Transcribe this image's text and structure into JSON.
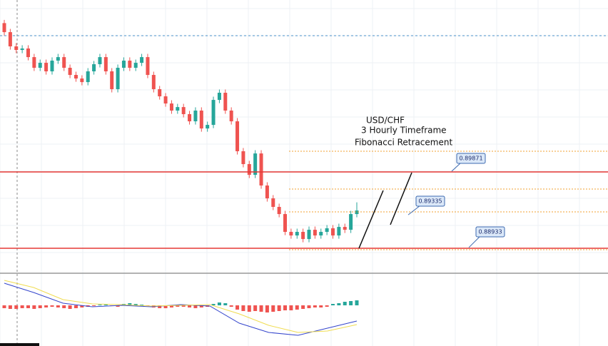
{
  "chart_data": {
    "type": "candlestick",
    "annotations": [
      "USD/CHF",
      "3 Hourly Timeframe",
      "Fibonacci Retracement"
    ],
    "ylim": [
      0.88652,
      0.91984
    ],
    "up_color": "#26a69a",
    "down_color": "#ef5350",
    "open": [
      0.917,
      0.91589,
      0.91414,
      0.9137,
      0.91388,
      0.91282,
      0.91151,
      0.91212,
      0.91107,
      0.91239,
      0.91282,
      0.91151,
      0.91063,
      0.91019,
      0.90975,
      0.91107,
      0.91195,
      0.91282,
      0.91107,
      0.90888,
      0.91151,
      0.91239,
      0.91151,
      0.91212,
      0.91282,
      0.91063,
      0.90888,
      0.908,
      0.90712,
      0.90625,
      0.90668,
      0.90581,
      0.90493,
      0.90625,
      0.90405,
      0.90449,
      0.90756,
      0.90844,
      0.90625,
      0.90493,
      0.90125,
      0.89967,
      0.89835,
      0.90098,
      0.89704,
      0.89546,
      0.89441,
      0.89353,
      0.89134,
      0.8909,
      0.89134,
      0.89046,
      0.8916,
      0.8909,
      0.89134,
      0.89178,
      0.8909,
      0.89195,
      0.8916,
      0.89353
    ],
    "high": [
      0.9174,
      0.91629,
      0.91454,
      0.91428,
      0.91428,
      0.91322,
      0.91252,
      0.91252,
      0.91279,
      0.91322,
      0.91322,
      0.91191,
      0.91103,
      0.91059,
      0.91147,
      0.91235,
      0.91322,
      0.91322,
      0.91147,
      0.91191,
      0.91279,
      0.91279,
      0.91252,
      0.91322,
      0.91322,
      0.91103,
      0.90928,
      0.9084,
      0.90752,
      0.90708,
      0.90708,
      0.90621,
      0.90665,
      0.90665,
      0.90489,
      0.90796,
      0.90884,
      0.90884,
      0.90665,
      0.90533,
      0.90165,
      0.90007,
      0.90138,
      0.90138,
      0.89744,
      0.89586,
      0.89481,
      0.89393,
      0.89174,
      0.89174,
      0.89174,
      0.892,
      0.892,
      0.89174,
      0.89218,
      0.89218,
      0.89235,
      0.89235,
      0.89393,
      0.89497
    ],
    "low": [
      0.91549,
      0.91374,
      0.9133,
      0.9133,
      0.91242,
      0.91111,
      0.91111,
      0.91067,
      0.91067,
      0.91199,
      0.91111,
      0.91023,
      0.90979,
      0.90935,
      0.90935,
      0.91067,
      0.91155,
      0.91067,
      0.90848,
      0.90848,
      0.91111,
      0.91111,
      0.91111,
      0.91172,
      0.91023,
      0.90848,
      0.9076,
      0.90672,
      0.90585,
      0.90585,
      0.90541,
      0.90453,
      0.90453,
      0.90365,
      0.90365,
      0.90409,
      0.90716,
      0.90585,
      0.90453,
      0.90085,
      0.89927,
      0.89795,
      0.89795,
      0.89664,
      0.89506,
      0.89401,
      0.89313,
      0.89094,
      0.8905,
      0.8905,
      0.89006,
      0.89006,
      0.8905,
      0.8905,
      0.89094,
      0.8905,
      0.8905,
      0.8912,
      0.8912,
      0.89313
    ],
    "close": [
      0.91589,
      0.91414,
      0.9137,
      0.91388,
      0.91282,
      0.91151,
      0.91212,
      0.91107,
      0.91239,
      0.91282,
      0.91151,
      0.91063,
      0.91019,
      0.90975,
      0.91107,
      0.91195,
      0.91282,
      0.91107,
      0.90888,
      0.91151,
      0.91239,
      0.91151,
      0.91212,
      0.91282,
      0.91063,
      0.90888,
      0.908,
      0.90712,
      0.90625,
      0.90668,
      0.90581,
      0.90493,
      0.90625,
      0.90405,
      0.90449,
      0.90756,
      0.90844,
      0.90625,
      0.90493,
      0.90125,
      0.89967,
      0.89835,
      0.90098,
      0.89704,
      0.89546,
      0.89441,
      0.89353,
      0.89134,
      0.8909,
      0.89134,
      0.89046,
      0.8916,
      0.8909,
      0.89134,
      0.89178,
      0.8909,
      0.89195,
      0.8916,
      0.89353,
      0.89397
    ],
    "levels": [
      {
        "value": 0.89871,
        "line_style": "solid",
        "color": "#e53935"
      },
      {
        "value": 0.89335
      },
      {
        "value": 0.88933,
        "line_style": "solid",
        "color": "#e53935"
      }
    ],
    "fib_levels": {
      "values": [
        0.90125,
        0.8966,
        0.8938,
        0.88915
      ],
      "color": "#f0a030"
    },
    "oscillator": {
      "ylim": [
        -52,
        43
      ],
      "histogram": [
        -4,
        -5,
        -5,
        -4,
        -4,
        -5,
        -4,
        -3,
        -2,
        -3,
        -4,
        -5,
        -4,
        -3,
        -2,
        -1,
        1,
        1,
        -1,
        -2,
        2,
        3,
        2,
        1,
        -1,
        -3,
        -4,
        -4,
        -3,
        -2,
        -2,
        -3,
        -4,
        -3,
        -2,
        2,
        4,
        3,
        -2,
        -6,
        -8,
        -9,
        -8,
        -9,
        -10,
        -9,
        -8,
        -7,
        -7,
        -6,
        -5,
        -4,
        -3,
        -3,
        -2,
        2,
        3,
        5,
        6,
        7
      ],
      "series": [
        {
          "color": "#3344cc",
          "values": [
            31,
            18,
            3,
            -2,
            0,
            -2,
            1,
            -1,
            -25,
            -38,
            -42,
            -32,
            -22
          ]
        },
        {
          "color": "#f0dc50",
          "values": [
            35,
            25,
            8,
            2,
            1,
            -1,
            0,
            1,
            -12,
            -28,
            -38,
            -36,
            -27
          ]
        }
      ]
    }
  }
}
